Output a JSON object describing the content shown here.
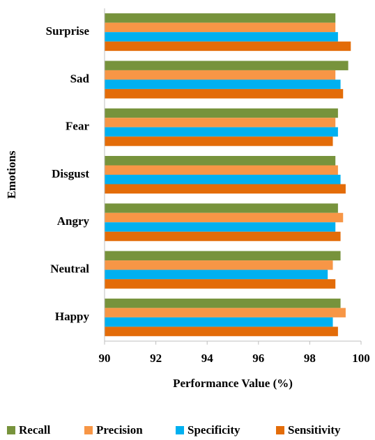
{
  "chart_data": {
    "type": "hbar",
    "x_label": "Performance Value (%)",
    "y_label": "Emotions",
    "categories": [
      "Surprise",
      "Sad",
      "Fear",
      "Disgust",
      "Angry",
      "Neutral",
      "Happy"
    ],
    "series": [
      {
        "name": "Recall",
        "color": "#77933c",
        "values": [
          99.0,
          99.5,
          99.1,
          99.0,
          99.1,
          99.2,
          99.2
        ]
      },
      {
        "name": "Precision",
        "color": "#f79646",
        "values": [
          99.0,
          99.0,
          99.0,
          99.1,
          99.3,
          98.9,
          99.4
        ]
      },
      {
        "name": "Specificity",
        "color": "#00b0f0",
        "values": [
          99.1,
          99.2,
          99.1,
          99.2,
          99.0,
          98.7,
          98.9
        ]
      },
      {
        "name": "Sensitivity",
        "color": "#e36c09",
        "values": [
          99.6,
          99.3,
          98.9,
          99.4,
          99.2,
          99.0,
          99.1
        ]
      }
    ],
    "xlim": [
      90,
      100
    ],
    "xticks": [
      90,
      92,
      94,
      96,
      98,
      100
    ],
    "legend": "bottom"
  }
}
